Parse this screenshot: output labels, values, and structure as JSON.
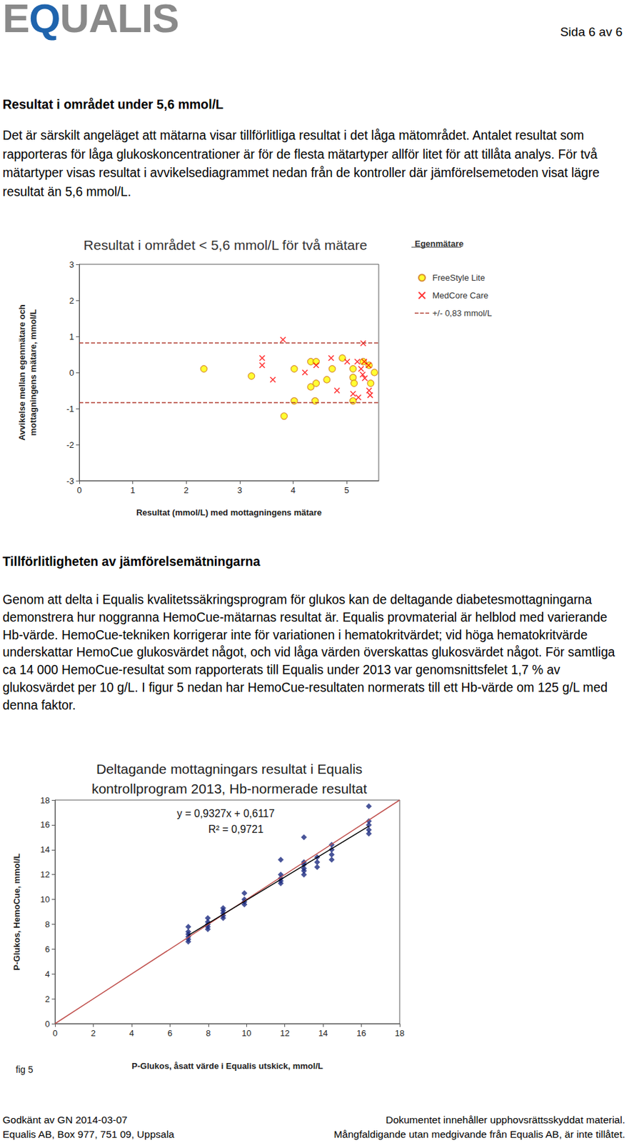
{
  "header": {
    "logo": "EQUALIS",
    "page": "Sida 6 av 6"
  },
  "sections": [
    {
      "heading": "Resultat i området under 5,6 mmol/L",
      "paragraph": "Det är särskilt angeläget att mätarna visar tillförlitliga resultat i det låga mätområdet. Antalet resultat som rapporteras för låga glukoskoncentrationer är för de flesta mätartyper allför litet för att tillåta analys. För två mätartyper visas resultat i avvikelsediagrammet nedan från de kontroller där jämförelsemetoden visat lägre resultat än 5,6 mmol/L."
    },
    {
      "heading": "Tillförlitligheten av jämförelsemätningarna",
      "paragraph": "Genom att delta i Equalis kvalitetssäkringsprogram för glukos kan de deltagande diabetesmottagningarna demonstrera hur noggranna HemoCue-mätarnas resultat är. Equalis provmaterial är helblod med varierande Hb-värde. HemoCue-tekniken korrigerar inte för variationen i hematokritvärdet; vid höga hematokritvärde underskattar HemoCue glukosvärdet något, och vid låga värden överskattas glukosvärdet något. För samtliga ca 14 000 HemoCue-resultat som rapporterats till Equalis under 2013 var genomsnittsfelet 1,7 % av glukosvärdet per 10 g/L. I figur 5 nedan har HemoCue-resultaten normerats till ett Hb-värde om 125 g/L med denna faktor."
    }
  ],
  "chart_data": [
    {
      "type": "scatter",
      "title": "Resultat i området < 5,6 mmol/L för två mätare",
      "x_label": "Resultat (mmol/L) med mottagningens mätare",
      "y_label": "Avvikelse mellan egenmätare och\nmottagningens mätare, mmol/L",
      "xlim": [
        0,
        5.6
      ],
      "xticks": [
        0,
        1,
        2,
        3,
        4,
        5
      ],
      "ylim": [
        -3,
        3
      ],
      "yticks": [
        -3,
        -2,
        -1,
        0,
        1,
        2,
        3
      ],
      "grid": false,
      "legend": "right",
      "legend_title": "Egenmätare",
      "series": [
        {
          "name": "FreeStyle Lite",
          "color": "#ffff00",
          "marker": "circle",
          "x": [
            2.33,
            3.22,
            3.83,
            4.02,
            4.02,
            4.33,
            4.43,
            4.33,
            4.43,
            4.41,
            4.63,
            4.73,
            4.92,
            5.12,
            5.12,
            5.12,
            5.14,
            5.31,
            5.42,
            5.52,
            5.45
          ],
          "values": [
            0.1,
            -0.1,
            -1.21,
            0.1,
            -0.79,
            0.3,
            0.3,
            -0.4,
            -0.3,
            -0.79,
            -0.2,
            0.1,
            0.4,
            0.1,
            -0.14,
            -0.79,
            -0.3,
            0.3,
            0.2,
            0.0,
            -0.3
          ]
        },
        {
          "name": "MedCore Care",
          "color": "#ff0000",
          "marker": "x",
          "x": [
            3.42,
            3.42,
            3.62,
            3.81,
            4.22,
            4.43,
            4.71,
            4.82,
            5.01,
            5.12,
            5.22,
            5.2,
            5.27,
            5.3,
            5.31,
            5.33,
            5.34,
            5.42,
            5.44,
            5.41
          ],
          "values": [
            0.4,
            0.2,
            -0.2,
            0.91,
            0.0,
            0.2,
            0.4,
            -0.5,
            0.3,
            -0.59,
            -0.69,
            0.3,
            0.1,
            -0.06,
            0.81,
            0.3,
            -0.16,
            -0.5,
            -0.63,
            0.2
          ]
        },
        {
          "name": "+/- 0,83 mmol/L",
          "type": "hline",
          "color": "#b03a2e",
          "line_style": "dashed",
          "values": [
            0.83,
            -0.83
          ]
        }
      ]
    },
    {
      "type": "scatter",
      "title": "Deltagande mottagningars resultat i Equalis\nkontrollprogram 2013, Hb-normerade resultat",
      "x_label": "P-Glukos, åsatt värde i Equalis utskick, mmol/L",
      "y_label": "P-Glukos, HemoCue, mmol/L",
      "xlim": [
        0,
        18
      ],
      "xticks": [
        0,
        2,
        4,
        6,
        8,
        10,
        12,
        14,
        16,
        18
      ],
      "ylim": [
        0,
        18
      ],
      "yticks": [
        0,
        2,
        4,
        6,
        8,
        10,
        12,
        14,
        16,
        18
      ],
      "grid": false,
      "figure_label": "fig 5",
      "annotations": [
        "y = 0,9327x + 0,6117",
        "R² = 0,9721"
      ],
      "series": [
        {
          "type": "scatter",
          "color": "#1c2a80",
          "marker": "diamond",
          "x": [
            6.96,
            6.96,
            6.96,
            6.96,
            6.96,
            6.96,
            7.98,
            7.98,
            7.98,
            7.98,
            7.98,
            8.78,
            8.78,
            8.78,
            8.78,
            8.78,
            9.89,
            9.89,
            9.89,
            9.89,
            11.79,
            11.79,
            11.79,
            11.79,
            11.79,
            13.0,
            13.0,
            13.0,
            13.0,
            13.0,
            13.0,
            13.69,
            13.69,
            13.69,
            14.45,
            14.45,
            14.45,
            14.45,
            16.39,
            16.39,
            16.39,
            16.39,
            16.39
          ],
          "values": [
            6.6,
            6.8,
            7.0,
            7.2,
            7.4,
            7.8,
            7.6,
            7.8,
            8.0,
            8.2,
            8.5,
            8.5,
            8.7,
            8.9,
            9.1,
            9.3,
            9.6,
            9.8,
            10.0,
            10.5,
            11.3,
            11.5,
            11.7,
            12.0,
            13.2,
            12.0,
            12.3,
            12.5,
            12.8,
            13.0,
            15.0,
            12.6,
            13.0,
            13.4,
            13.2,
            13.6,
            14.0,
            14.4,
            15.3,
            15.6,
            16.0,
            16.3,
            17.5
          ]
        },
        {
          "type": "line",
          "color": "#c0504d",
          "line_style": "solid",
          "x": [
            0,
            18
          ],
          "values": [
            0,
            18
          ]
        },
        {
          "type": "trendline",
          "color": "#000000",
          "line_style": "solid",
          "slope": 0.9327,
          "intercept": 0.6117,
          "x": [
            6.96,
            16.39
          ]
        }
      ]
    }
  ],
  "footer": {
    "left": [
      "Godkänt av GN 2014-03-07",
      "Equalis AB, Box 977, 751 09, Uppsala"
    ],
    "right": [
      "Dokumentet innehåller upphovsrättsskyddat material.",
      "Mångfaldigande utan medgivande från Equalis AB, är inte tillåtet."
    ]
  }
}
